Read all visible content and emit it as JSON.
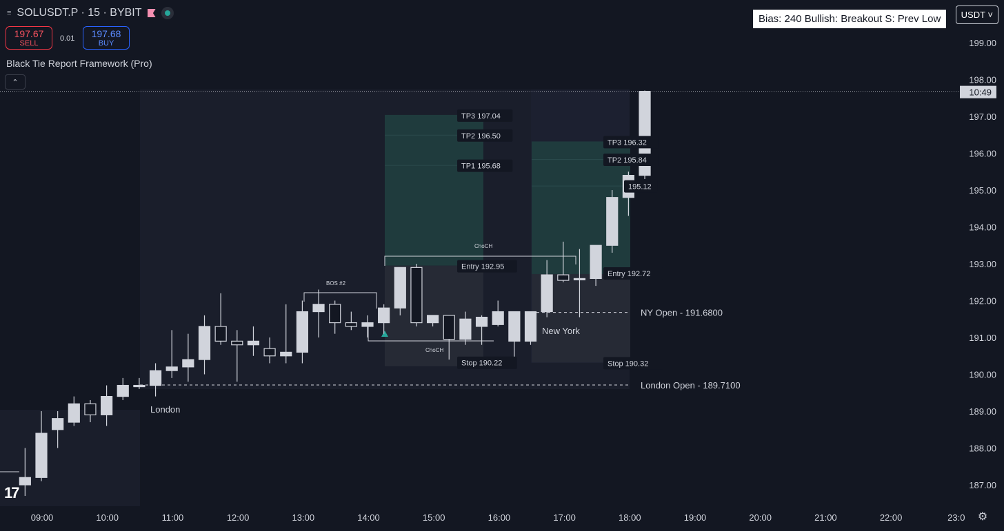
{
  "header": {
    "symbol": "SOLUSDT.P · 15 · BYBIT",
    "menu_icon": "menu-icon",
    "flag_icon": "flag-icon",
    "status_icon": "market-open-dot-icon"
  },
  "trade": {
    "sell_price": "197.67",
    "sell_label": "SELL",
    "spread": "0.01",
    "buy_price": "197.68",
    "buy_label": "BUY"
  },
  "indicator": {
    "name": "Black Tie Report Framework (Pro)",
    "collapse_icon": "chevron-up-icon"
  },
  "bias_box": "Bias: 240  Bullish: Breakout  S: Prev Low",
  "currency": "USDT ˅",
  "logo": "17",
  "settings_icon": "gear-icon",
  "colors": {
    "background": "#131722",
    "candle": "#d1d4dc",
    "session_shade": "#1a1e2b",
    "tp_zone": "#1f3b3d",
    "sl_zone": "#262a35",
    "teal_marker": "#26a69a"
  },
  "chart_data": {
    "type": "candlestick",
    "symbol": "SOLUSDT.P",
    "interval_minutes": 15,
    "ylim": [
      186.4,
      200.0
    ],
    "y_ticks": [
      "199.00",
      "198.00",
      "197.00",
      "196.00",
      "195.00",
      "194.00",
      "193.00",
      "192.00",
      "191.00",
      "190.00",
      "189.00",
      "188.00",
      "187.00"
    ],
    "x_ticks": [
      "09:00",
      "10:00",
      "11:00",
      "12:00",
      "13:00",
      "14:00",
      "15:00",
      "16:00",
      "17:00",
      "18:00",
      "19:00",
      "20:00",
      "21:00",
      "22:00",
      "23:0"
    ],
    "current_price": "197.68",
    "countdown": "10:49",
    "candles": [
      {
        "t": "08:45",
        "o": 187.0,
        "h": 188.0,
        "l": 186.7,
        "c": 187.2
      },
      {
        "t": "09:00",
        "o": 187.2,
        "h": 189.0,
        "l": 187.1,
        "c": 188.4
      },
      {
        "t": "09:15",
        "o": 188.5,
        "h": 189.0,
        "l": 188.0,
        "c": 188.8
      },
      {
        "t": "09:30",
        "o": 188.7,
        "h": 189.4,
        "l": 188.6,
        "c": 189.2
      },
      {
        "t": "09:45",
        "o": 189.2,
        "h": 189.3,
        "l": 188.7,
        "c": 188.9
      },
      {
        "t": "10:00",
        "o": 188.9,
        "h": 189.7,
        "l": 188.6,
        "c": 189.4
      },
      {
        "t": "10:15",
        "o": 189.4,
        "h": 189.9,
        "l": 189.3,
        "c": 189.7
      },
      {
        "t": "10:30",
        "o": 189.7,
        "h": 189.9,
        "l": 189.6,
        "c": 189.7
      },
      {
        "t": "10:45",
        "o": 189.7,
        "h": 190.3,
        "l": 189.4,
        "c": 190.1
      },
      {
        "t": "11:00",
        "o": 190.1,
        "h": 191.2,
        "l": 189.9,
        "c": 190.2
      },
      {
        "t": "11:15",
        "o": 190.2,
        "h": 191.1,
        "l": 189.8,
        "c": 190.4
      },
      {
        "t": "11:30",
        "o": 190.4,
        "h": 191.6,
        "l": 190.0,
        "c": 191.3
      },
      {
        "t": "11:45",
        "o": 191.3,
        "h": 192.2,
        "l": 190.8,
        "c": 190.9
      },
      {
        "t": "12:00",
        "o": 190.9,
        "h": 191.2,
        "l": 189.8,
        "c": 190.8
      },
      {
        "t": "12:15",
        "o": 190.8,
        "h": 191.3,
        "l": 190.5,
        "c": 190.9
      },
      {
        "t": "12:30",
        "o": 190.7,
        "h": 191.0,
        "l": 190.3,
        "c": 190.5
      },
      {
        "t": "12:45",
        "o": 190.5,
        "h": 191.9,
        "l": 190.3,
        "c": 190.6
      },
      {
        "t": "13:00",
        "o": 190.6,
        "h": 192.0,
        "l": 190.3,
        "c": 191.7
      },
      {
        "t": "13:15",
        "o": 191.7,
        "h": 192.3,
        "l": 191.0,
        "c": 191.9
      },
      {
        "t": "13:30",
        "o": 191.9,
        "h": 192.0,
        "l": 191.1,
        "c": 191.4
      },
      {
        "t": "13:45",
        "o": 191.4,
        "h": 191.7,
        "l": 191.2,
        "c": 191.3
      },
      {
        "t": "14:00",
        "o": 191.3,
        "h": 191.6,
        "l": 191.0,
        "c": 191.4
      },
      {
        "t": "14:15",
        "o": 191.4,
        "h": 191.9,
        "l": 191.1,
        "c": 191.8
      },
      {
        "t": "14:30",
        "o": 191.8,
        "h": 192.9,
        "l": 191.6,
        "c": 192.9
      },
      {
        "t": "14:45",
        "o": 192.9,
        "h": 193.0,
        "l": 191.3,
        "c": 191.4
      },
      {
        "t": "15:00",
        "o": 191.4,
        "h": 191.6,
        "l": 191.3,
        "c": 191.6
      },
      {
        "t": "15:15",
        "o": 191.6,
        "h": 191.6,
        "l": 190.4,
        "c": 190.95
      },
      {
        "t": "15:30",
        "o": 190.95,
        "h": 191.7,
        "l": 190.8,
        "c": 191.5
      },
      {
        "t": "15:45",
        "o": 191.3,
        "h": 191.6,
        "l": 190.8,
        "c": 191.55
      },
      {
        "t": "16:00",
        "o": 191.35,
        "h": 192.0,
        "l": 191.3,
        "c": 191.7
      },
      {
        "t": "16:15",
        "o": 190.9,
        "h": 191.7,
        "l": 190.3,
        "c": 191.7
      },
      {
        "t": "16:30",
        "o": 190.9,
        "h": 191.7,
        "l": 190.8,
        "c": 191.7
      },
      {
        "t": "16:45",
        "o": 191.7,
        "h": 193.1,
        "l": 191.55,
        "c": 192.7
      },
      {
        "t": "17:00",
        "o": 192.7,
        "h": 193.6,
        "l": 192.5,
        "c": 192.55
      },
      {
        "t": "17:15",
        "o": 192.6,
        "h": 193.4,
        "l": 191.55,
        "c": 192.6
      },
      {
        "t": "17:30",
        "o": 192.6,
        "h": 193.4,
        "l": 192.4,
        "c": 193.5
      },
      {
        "t": "17:45",
        "o": 193.5,
        "h": 195.0,
        "l": 193.3,
        "c": 194.8
      },
      {
        "t": "18:00",
        "o": 194.8,
        "h": 195.5,
        "l": 194.3,
        "c": 195.4
      },
      {
        "t": "18:15",
        "o": 195.4,
        "h": 197.7,
        "l": 195.3,
        "c": 197.68
      }
    ],
    "annotations": [
      {
        "type": "zone-label",
        "text": "TP3  197.04",
        "price": 197.04
      },
      {
        "type": "zone-label",
        "text": "TP2  196.50",
        "price": 196.5
      },
      {
        "type": "zone-label",
        "text": "TP1  195.68",
        "price": 195.68
      },
      {
        "type": "zone-label",
        "text": "Entry 192.95",
        "price": 192.95
      },
      {
        "type": "zone-label",
        "text": "Stop  190.22",
        "price": 190.22
      },
      {
        "type": "zone-label",
        "text": "TP3  196.32",
        "price": 196.32
      },
      {
        "type": "zone-label",
        "text": "TP2  195.84",
        "price": 195.84
      },
      {
        "type": "zone-label",
        "text": "195.12",
        "price": 195.12
      },
      {
        "type": "zone-label",
        "text": "Entry 192.72",
        "price": 192.72
      },
      {
        "type": "zone-label",
        "text": "Stop  190.32",
        "price": 190.32
      },
      {
        "type": "level",
        "text": "NY Open - 191.6800",
        "price": 191.68
      },
      {
        "type": "level",
        "text": "London Open - 189.7100",
        "price": 189.71
      },
      {
        "type": "session",
        "text": "London"
      },
      {
        "type": "session",
        "text": "New York"
      },
      {
        "type": "structure",
        "text": "BOS #2",
        "price": 191.98
      },
      {
        "type": "structure",
        "text": "ChoCH",
        "price": 193.2
      },
      {
        "type": "structure",
        "text": "ChoCH",
        "price": 190.9
      }
    ]
  }
}
